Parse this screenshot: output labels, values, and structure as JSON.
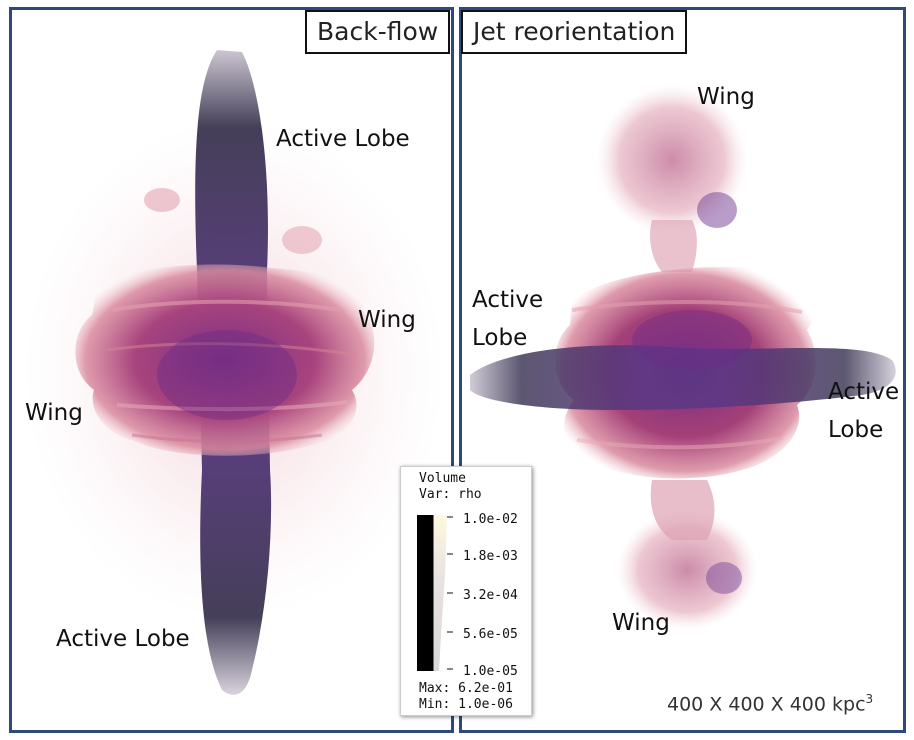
{
  "panels": {
    "left": {
      "title": "Back-flow",
      "labels": {
        "top_lobe": "Active Lobe",
        "right_wing": "Wing",
        "left_wing": "Wing",
        "bottom_lobe": "Active Lobe"
      }
    },
    "right": {
      "title": "Jet reorientation",
      "labels": {
        "top_wing": "Wing",
        "left_lobe_line1": "Active",
        "left_lobe_line2": "Lobe",
        "right_lobe_line1": "Active",
        "right_lobe_line2": "Lobe",
        "bottom_wing": "Wing"
      }
    }
  },
  "legend": {
    "title": "Volume",
    "variable": "Var: rho",
    "ticks": [
      "1.0e-02",
      "1.8e-03",
      "3.2e-04",
      "5.6e-05",
      "1.0e-05"
    ],
    "max": "Max:  6.2e-01",
    "min": "Min:  1.0e-06"
  },
  "scale_note": {
    "text": "400 X 400 X 400 kpc",
    "exponent": "3"
  },
  "colors": {
    "frame": "#2f4a7a",
    "cocoon": "#a0407e",
    "jet": "#3c2a6e",
    "halo": "#e7a9b8"
  }
}
